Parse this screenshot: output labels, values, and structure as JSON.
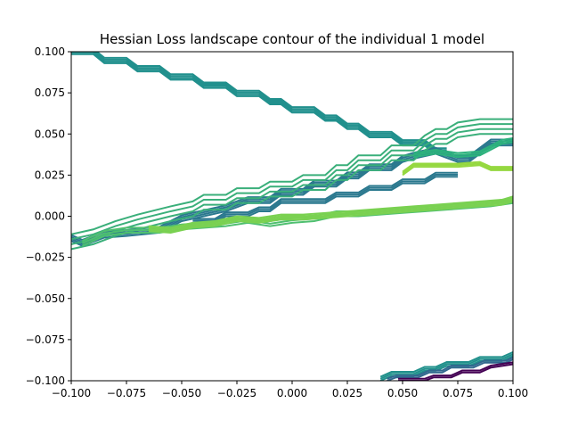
{
  "chart_data": {
    "type": "contour",
    "title": "Hessian Loss landscape contour of the individual 1 model",
    "xlabel": "",
    "ylabel": "",
    "xlim": [
      -0.1,
      0.1
    ],
    "ylim": [
      -0.1,
      0.1
    ],
    "grid": false,
    "legend": "none",
    "xticks": [
      {
        "value": -0.1,
        "label": "−0.100"
      },
      {
        "value": -0.075,
        "label": "−0.075"
      },
      {
        "value": -0.05,
        "label": "−0.050"
      },
      {
        "value": -0.025,
        "label": "−0.025"
      },
      {
        "value": 0.0,
        "label": "0.000"
      },
      {
        "value": 0.025,
        "label": "0.025"
      },
      {
        "value": 0.05,
        "label": "0.050"
      },
      {
        "value": 0.075,
        "label": "0.075"
      },
      {
        "value": 0.1,
        "label": "0.100"
      }
    ],
    "yticks": [
      {
        "value": -0.1,
        "label": "−0.100"
      },
      {
        "value": -0.075,
        "label": "−0.075"
      },
      {
        "value": -0.05,
        "label": "−0.050"
      },
      {
        "value": -0.025,
        "label": "−0.025"
      },
      {
        "value": 0.0,
        "label": "0.000"
      },
      {
        "value": 0.025,
        "label": "0.025"
      },
      {
        "value": 0.05,
        "label": "0.050"
      },
      {
        "value": 0.075,
        "label": "0.075"
      },
      {
        "value": 0.1,
        "label": "0.100"
      }
    ],
    "colormap": "viridis",
    "bands": [
      {
        "color": "#21908d",
        "offsets": [
          0,
          0.0011,
          0.0022,
          0.0033
        ],
        "points": [
          [
            -0.1,
            0.0985
          ],
          [
            -0.09,
            0.0985
          ],
          [
            -0.085,
            0.093
          ],
          [
            -0.075,
            0.093
          ],
          [
            -0.07,
            0.088
          ],
          [
            -0.06,
            0.088
          ],
          [
            -0.055,
            0.083
          ],
          [
            -0.045,
            0.083
          ],
          [
            -0.04,
            0.078
          ],
          [
            -0.03,
            0.078
          ],
          [
            -0.025,
            0.073
          ],
          [
            -0.015,
            0.073
          ],
          [
            -0.01,
            0.068
          ],
          [
            -0.005,
            0.068
          ],
          [
            0.0,
            0.063
          ],
          [
            0.01,
            0.063
          ],
          [
            0.015,
            0.058
          ],
          [
            0.02,
            0.058
          ],
          [
            0.025,
            0.053
          ],
          [
            0.03,
            0.053
          ],
          [
            0.035,
            0.048
          ],
          [
            0.045,
            0.048
          ],
          [
            0.05,
            0.043
          ],
          [
            0.06,
            0.043
          ],
          [
            0.065,
            0.038
          ],
          [
            0.07,
            0.038
          ]
        ]
      },
      {
        "color": "#2a788e",
        "offsets": [
          0,
          0.0012,
          0.0024,
          0.0036
        ],
        "points": [
          [
            -0.1,
            -0.015
          ],
          [
            -0.095,
            -0.018
          ],
          [
            -0.085,
            -0.013
          ],
          [
            -0.075,
            -0.012
          ],
          [
            -0.06,
            -0.01
          ],
          [
            -0.05,
            -0.003
          ],
          [
            -0.04,
            -0.0
          ],
          [
            -0.03,
            0.003
          ],
          [
            -0.02,
            0.008
          ],
          [
            -0.01,
            0.008
          ],
          [
            -0.005,
            0.013
          ],
          [
            0.005,
            0.013
          ],
          [
            0.01,
            0.018
          ],
          [
            0.02,
            0.018
          ],
          [
            0.025,
            0.023
          ],
          [
            0.03,
            0.023
          ],
          [
            0.035,
            0.028
          ],
          [
            0.045,
            0.028
          ],
          [
            0.05,
            0.033
          ],
          [
            0.055,
            0.035
          ],
          [
            0.065,
            0.038
          ],
          [
            0.075,
            0.033
          ],
          [
            0.08,
            0.033
          ],
          [
            0.085,
            0.038
          ],
          [
            0.09,
            0.043
          ],
          [
            0.1,
            0.043
          ]
        ]
      },
      {
        "color": "#2a788e",
        "offsets": [
          0,
          0.0012,
          0.0024
        ],
        "points": [
          [
            -0.045,
            -0.004
          ],
          [
            -0.035,
            -0.004
          ],
          [
            -0.03,
            0.0
          ],
          [
            -0.02,
            0.0
          ],
          [
            -0.015,
            0.003
          ],
          [
            -0.01,
            0.003
          ],
          [
            -0.005,
            0.008
          ],
          [
            0.0,
            0.008
          ],
          [
            0.005,
            0.008
          ],
          [
            0.015,
            0.008
          ],
          [
            0.02,
            0.012
          ],
          [
            0.03,
            0.012
          ],
          [
            0.035,
            0.016
          ],
          [
            0.045,
            0.016
          ],
          [
            0.05,
            0.02
          ],
          [
            0.06,
            0.02
          ],
          [
            0.065,
            0.024
          ],
          [
            0.075,
            0.024
          ]
        ]
      },
      {
        "color": "#3aaf7a",
        "offsets": [
          0,
          0.003,
          0.006,
          0.009
        ],
        "points": [
          [
            -0.1,
            -0.02
          ],
          [
            -0.09,
            -0.017
          ],
          [
            -0.08,
            -0.012
          ],
          [
            -0.07,
            -0.008
          ],
          [
            -0.055,
            -0.003
          ],
          [
            -0.045,
            0.0
          ],
          [
            -0.04,
            0.004
          ],
          [
            -0.03,
            0.004
          ],
          [
            -0.025,
            0.008
          ],
          [
            -0.015,
            0.008
          ],
          [
            -0.01,
            0.012
          ],
          [
            0.0,
            0.012
          ],
          [
            0.005,
            0.016
          ],
          [
            0.015,
            0.016
          ],
          [
            0.02,
            0.022
          ],
          [
            0.025,
            0.022
          ],
          [
            0.03,
            0.028
          ],
          [
            0.04,
            0.028
          ],
          [
            0.045,
            0.034
          ],
          [
            0.055,
            0.034
          ],
          [
            0.06,
            0.04
          ],
          [
            0.065,
            0.044
          ],
          [
            0.07,
            0.044
          ],
          [
            0.075,
            0.048
          ],
          [
            0.085,
            0.05
          ],
          [
            0.1,
            0.05
          ]
        ]
      },
      {
        "color": "#4fbf70",
        "offsets": [
          0,
          0.0015,
          0.003
        ],
        "points": [
          [
            -0.095,
            -0.018
          ],
          [
            -0.085,
            -0.012
          ],
          [
            -0.075,
            -0.01
          ],
          [
            -0.06,
            -0.01
          ],
          [
            -0.05,
            -0.008
          ],
          [
            -0.03,
            -0.006
          ],
          [
            -0.02,
            -0.004
          ],
          [
            -0.01,
            -0.006
          ],
          [
            0.0,
            -0.004
          ],
          [
            0.01,
            -0.003
          ],
          [
            0.02,
            0.0
          ],
          [
            0.03,
            0.0
          ],
          [
            0.04,
            0.001
          ],
          [
            0.05,
            0.002
          ],
          [
            0.06,
            0.003
          ],
          [
            0.07,
            0.004
          ],
          [
            0.08,
            0.005
          ],
          [
            0.09,
            0.006
          ],
          [
            0.1,
            0.008
          ]
        ]
      },
      {
        "color": "#7ad151",
        "offsets": [
          0,
          0.001,
          0.002,
          0.003
        ],
        "points": [
          [
            -0.065,
            -0.009
          ],
          [
            -0.055,
            -0.01
          ],
          [
            -0.045,
            -0.007
          ],
          [
            -0.035,
            -0.006
          ],
          [
            -0.025,
            -0.003
          ],
          [
            -0.015,
            -0.004
          ],
          [
            -0.005,
            -0.002
          ],
          [
            0.005,
            -0.002
          ],
          [
            0.015,
            -0.001
          ],
          [
            0.025,
            0.0
          ],
          [
            0.035,
            0.001
          ],
          [
            0.045,
            0.002
          ],
          [
            0.055,
            0.003
          ],
          [
            0.065,
            0.004
          ],
          [
            0.075,
            0.005
          ],
          [
            0.085,
            0.006
          ],
          [
            0.095,
            0.007
          ],
          [
            0.1,
            0.009
          ]
        ]
      },
      {
        "color": "#95d840",
        "offsets": [
          0,
          0.001,
          0.002
        ],
        "points": [
          [
            0.05,
            0.025
          ],
          [
            0.055,
            0.03
          ],
          [
            0.065,
            0.03
          ],
          [
            0.075,
            0.03
          ],
          [
            0.085,
            0.031
          ],
          [
            0.09,
            0.028
          ],
          [
            0.1,
            0.028
          ]
        ]
      },
      {
        "color": "#2db27d",
        "offsets": [
          0,
          0.0012,
          0.0024
        ],
        "points": [
          [
            0.055,
            0.036
          ],
          [
            0.065,
            0.038
          ],
          [
            0.075,
            0.036
          ],
          [
            0.085,
            0.037
          ],
          [
            0.095,
            0.044
          ],
          [
            0.1,
            0.045
          ]
        ]
      },
      {
        "color": "#21918c",
        "offsets": [
          0,
          0.0012,
          0.0024
        ],
        "points": [
          [
            0.04,
            -0.1
          ],
          [
            0.045,
            -0.097
          ],
          [
            0.055,
            -0.097
          ],
          [
            0.06,
            -0.094
          ],
          [
            0.065,
            -0.094
          ],
          [
            0.07,
            -0.091
          ],
          [
            0.08,
            -0.091
          ],
          [
            0.085,
            -0.088
          ],
          [
            0.095,
            -0.088
          ],
          [
            0.1,
            -0.085
          ]
        ]
      },
      {
        "color": "#31688e",
        "offsets": [
          0,
          0.0012
        ],
        "points": [
          [
            0.043,
            -0.1
          ],
          [
            0.047,
            -0.098
          ],
          [
            0.057,
            -0.098
          ],
          [
            0.062,
            -0.095
          ],
          [
            0.068,
            -0.095
          ],
          [
            0.072,
            -0.092
          ],
          [
            0.082,
            -0.092
          ],
          [
            0.087,
            -0.089
          ],
          [
            0.097,
            -0.089
          ],
          [
            0.1,
            -0.087
          ]
        ]
      },
      {
        "color": "#440154",
        "offsets": [
          0,
          0.0012
        ],
        "points": [
          [
            0.048,
            -0.1
          ],
          [
            0.06,
            -0.1
          ],
          [
            0.064,
            -0.098
          ],
          [
            0.072,
            -0.098
          ],
          [
            0.077,
            -0.095
          ],
          [
            0.085,
            -0.095
          ],
          [
            0.09,
            -0.092
          ],
          [
            0.1,
            -0.09
          ]
        ]
      }
    ]
  }
}
